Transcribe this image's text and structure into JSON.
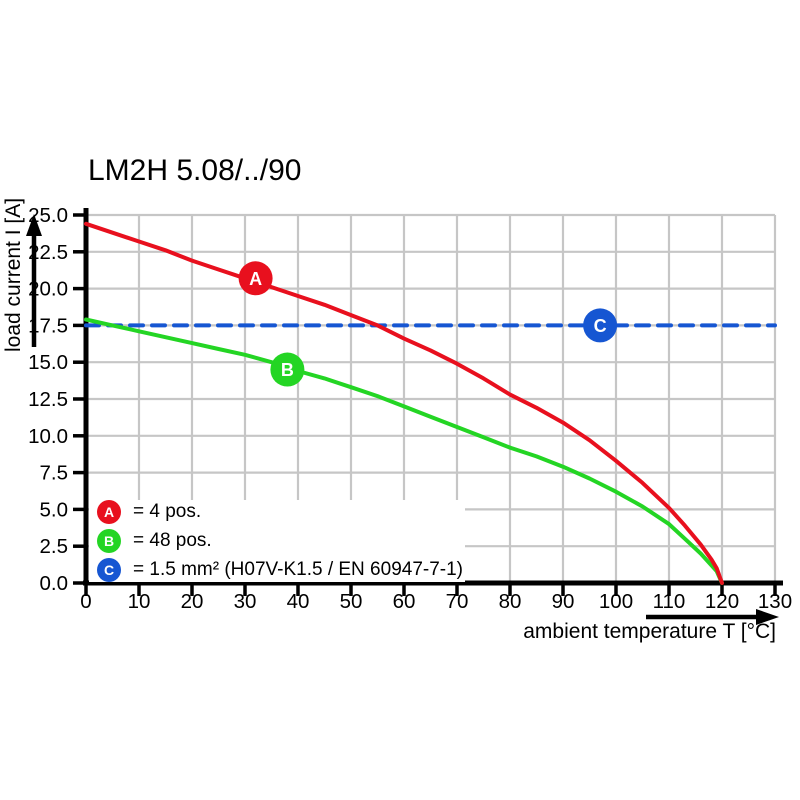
{
  "title": "LM2H 5.08/../90",
  "axes": {
    "x": {
      "label": "ambient temperature T [°C]",
      "min": 0,
      "max": 130,
      "tick_step": 10,
      "tick_labels": [
        "0",
        "10",
        "20",
        "30",
        "40",
        "50",
        "60",
        "70",
        "80",
        "90",
        "100",
        "110",
        "120",
        "130"
      ]
    },
    "y": {
      "label": "load current I [A]",
      "min": 0,
      "max": 25,
      "tick_step": 2.5,
      "tick_labels": [
        "0.0",
        "2.5",
        "5.0",
        "7.5",
        "10.0",
        "12.5",
        "15.0",
        "17.5",
        "20.0",
        "22.5",
        "25.0"
      ]
    }
  },
  "legend": {
    "items": [
      {
        "key": "A",
        "label": "= 4 pos.",
        "color": "#e8101e"
      },
      {
        "key": "B",
        "label": "= 48 pos.",
        "color": "#24d524"
      },
      {
        "key": "C",
        "label": "= 1.5 mm² (H07V-K1.5 / EN 60947-7-1)",
        "color": "#1656d2"
      }
    ]
  },
  "chart_data": {
    "type": "line",
    "title": "LM2H 5.08/../90",
    "xlabel": "ambient temperature T [°C]",
    "ylabel": "load current I [A]",
    "xlim": [
      0,
      130
    ],
    "ylim": [
      0,
      25
    ],
    "xtick_step": 10,
    "ytick_step": 2.5,
    "grid": true,
    "grid_color": "#c6c6c6",
    "axis_color": "#000000",
    "series": [
      {
        "name": "C",
        "label": "1.5 mm² (H07V-K1.5 / EN 60947-7-1)",
        "color": "#1656d2",
        "line_style": "dashed",
        "marker": {
          "letter": "C",
          "x": 97,
          "y": 17.5
        },
        "points": [
          [
            0,
            17.5
          ],
          [
            130,
            17.5
          ]
        ]
      },
      {
        "name": "B",
        "label": "48 pos.",
        "color": "#24d524",
        "line_style": "solid",
        "marker": {
          "letter": "B",
          "x": 38,
          "y": 14.5
        },
        "points": [
          [
            0,
            17.9
          ],
          [
            5,
            17.5
          ],
          [
            10,
            17.1
          ],
          [
            15,
            16.7
          ],
          [
            20,
            16.3
          ],
          [
            25,
            15.9
          ],
          [
            30,
            15.5
          ],
          [
            35,
            15.0
          ],
          [
            40,
            14.4
          ],
          [
            45,
            13.9
          ],
          [
            50,
            13.3
          ],
          [
            55,
            12.7
          ],
          [
            60,
            12.0
          ],
          [
            65,
            11.3
          ],
          [
            70,
            10.6
          ],
          [
            75,
            9.9
          ],
          [
            80,
            9.2
          ],
          [
            85,
            8.6
          ],
          [
            90,
            7.9
          ],
          [
            95,
            7.1
          ],
          [
            100,
            6.2
          ],
          [
            105,
            5.2
          ],
          [
            110,
            4.0
          ],
          [
            113,
            3.0
          ],
          [
            116,
            2.0
          ],
          [
            118,
            1.2
          ],
          [
            119,
            0.8
          ],
          [
            120,
            0
          ]
        ]
      },
      {
        "name": "A",
        "label": "4 pos.",
        "color": "#e8101e",
        "line_style": "solid",
        "marker": {
          "letter": "A",
          "x": 32,
          "y": 20.7
        },
        "points": [
          [
            0,
            24.4
          ],
          [
            5,
            23.8
          ],
          [
            10,
            23.2
          ],
          [
            15,
            22.6
          ],
          [
            20,
            21.9
          ],
          [
            25,
            21.3
          ],
          [
            30,
            20.7
          ],
          [
            35,
            20.1
          ],
          [
            40,
            19.5
          ],
          [
            45,
            18.9
          ],
          [
            50,
            18.2
          ],
          [
            55,
            17.5
          ],
          [
            60,
            16.6
          ],
          [
            65,
            15.8
          ],
          [
            70,
            14.9
          ],
          [
            75,
            13.9
          ],
          [
            80,
            12.8
          ],
          [
            85,
            11.9
          ],
          [
            90,
            10.9
          ],
          [
            95,
            9.7
          ],
          [
            100,
            8.3
          ],
          [
            105,
            6.8
          ],
          [
            110,
            5.1
          ],
          [
            113,
            3.9
          ],
          [
            116,
            2.6
          ],
          [
            118,
            1.6
          ],
          [
            119,
            1.0
          ],
          [
            120,
            0
          ]
        ]
      }
    ]
  }
}
